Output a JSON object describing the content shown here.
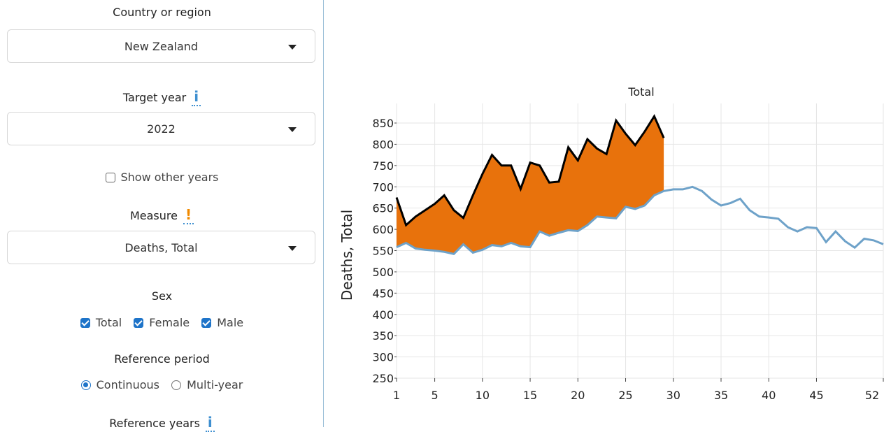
{
  "sidebar": {
    "country": {
      "label": "Country or region",
      "value": "New Zealand"
    },
    "target_year": {
      "label": "Target year",
      "value": "2022",
      "info_icon": "i"
    },
    "show_other_years": {
      "label": "Show other years",
      "checked": false
    },
    "measure": {
      "label": "Measure",
      "value": "Deaths, Total",
      "warn_icon": "!"
    },
    "sex": {
      "label": "Sex",
      "options": [
        {
          "label": "Total",
          "checked": true
        },
        {
          "label": "Female",
          "checked": true
        },
        {
          "label": "Male",
          "checked": true
        }
      ]
    },
    "reference_period": {
      "label": "Reference period",
      "options": [
        {
          "label": "Continuous",
          "selected": true
        },
        {
          "label": "Multi-year",
          "selected": false
        }
      ]
    },
    "reference_years": {
      "label": "Reference years",
      "info_icon": "i"
    }
  },
  "colors": {
    "accent": "#1e74c9",
    "excess_fill": "#e8720c",
    "observed": "#000000",
    "baseline": "#6ea2c9",
    "divider": "#9bbfd8"
  },
  "chart_data": {
    "type": "area",
    "title": "Total",
    "xlabel": "",
    "ylabel": "Deaths, Total",
    "xlim": [
      1,
      52
    ],
    "ylim": [
      250,
      850
    ],
    "x_ticks": [
      "1",
      "5",
      "10",
      "15",
      "20",
      "25",
      "30",
      "35",
      "40",
      "45",
      "52"
    ],
    "y_ticks": [
      "250",
      "300",
      "350",
      "400",
      "450",
      "500",
      "550",
      "600",
      "650",
      "700",
      "750",
      "800",
      "850"
    ],
    "grid": true,
    "series": [
      {
        "role": "observed",
        "x": [
          1,
          2,
          3,
          4,
          5,
          6,
          7,
          8,
          9,
          10,
          11,
          12,
          13,
          14,
          15,
          16,
          17,
          18,
          19,
          20,
          21,
          22,
          23,
          24,
          25,
          26,
          27,
          28,
          29
        ],
        "values": [
          675,
          610,
          630,
          645,
          660,
          680,
          645,
          627,
          680,
          730,
          775,
          750,
          750,
          695,
          757,
          750,
          710,
          712,
          793,
          762,
          812,
          790,
          777,
          856,
          825,
          798,
          830,
          866,
          815
        ]
      },
      {
        "role": "baseline",
        "x": [
          1,
          2,
          3,
          4,
          5,
          6,
          7,
          8,
          9,
          10,
          11,
          12,
          13,
          14,
          15,
          16,
          17,
          18,
          19,
          20,
          21,
          22,
          23,
          24,
          25,
          26,
          27,
          28,
          29,
          30,
          31,
          32,
          33,
          34,
          35,
          36,
          37,
          38,
          39,
          40,
          41,
          42,
          43,
          44,
          45,
          46,
          47,
          48,
          49,
          50,
          51,
          52
        ],
        "values": [
          558,
          568,
          555,
          552,
          550,
          547,
          542,
          565,
          545,
          552,
          563,
          560,
          568,
          560,
          558,
          595,
          585,
          592,
          598,
          596,
          610,
          630,
          628,
          626,
          653,
          648,
          656,
          680,
          690,
          694,
          694,
          700,
          690,
          670,
          656,
          662,
          672,
          645,
          630,
          628,
          625,
          605,
          595,
          605,
          603,
          570,
          595,
          572,
          557,
          578,
          574,
          565
        ]
      }
    ]
  }
}
